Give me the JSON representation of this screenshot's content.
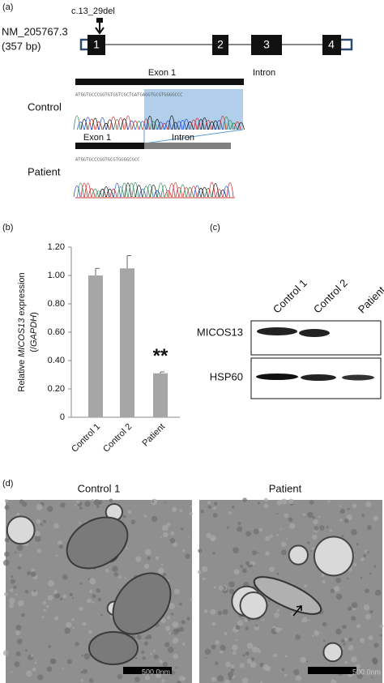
{
  "panel_a": {
    "label": "(a)",
    "transcript": "NM_205767.3",
    "length": "(357 bp)",
    "mutation": "c.13_29del",
    "exons": [
      "1",
      "2",
      "3",
      "4"
    ],
    "exon_label": "Exon 1",
    "intron_label": "Intron",
    "control": {
      "label": "Control",
      "sequence": "ATGGTGCCCGGTGTGGTCGCTGATGAGGTGCGTGGGGCCC"
    },
    "patient": {
      "label": "Patient",
      "sequence": "ATGGTGCCCGGTGCGTGGGGCGCC"
    }
  },
  "chart_data": {
    "type": "bar",
    "panel_label": "(b)",
    "y_label": {
      "line1": [
        "Relative",
        "MICOS13",
        "expression"
      ],
      "line2": [
        "(/",
        "GAPDH",
        ")"
      ]
    },
    "categories": [
      "Control 1",
      "Control 2",
      "Patient"
    ],
    "values": [
      1.0,
      1.05,
      0.31
    ],
    "errors": [
      0.05,
      0.09,
      0.01
    ],
    "color": "#a6a6a6",
    "ylim": [
      0,
      1.2
    ],
    "yticks": [
      0,
      {
        "value": 0.2,
        "label": "0.20"
      },
      {
        "value": 0.4,
        "label": "0.40"
      },
      {
        "value": 0.6,
        "label": "0.60"
      },
      {
        "value": 0.8,
        "label": "0.80"
      },
      {
        "value": 1.0,
        "label": "1.00"
      },
      {
        "value": 1.2,
        "label": "1.20"
      }
    ],
    "annotation": "**"
  },
  "panel_c": {
    "label": "(c)",
    "lanes": [
      "Control 1",
      "Control 2",
      "Patient"
    ],
    "rows": [
      "MICOS13",
      "HSP60"
    ]
  },
  "panel_d": {
    "label": "(d)",
    "titles": [
      "Control 1",
      "Patient"
    ],
    "scale_bar": "500.0nm"
  }
}
